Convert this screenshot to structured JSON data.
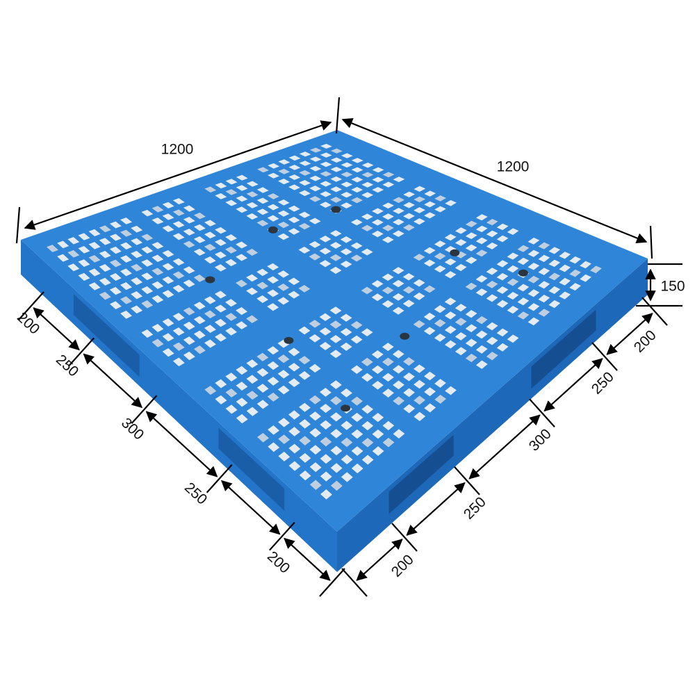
{
  "colors": {
    "pallet_top": "#2f86d8",
    "pallet_side_left": "#2275c9",
    "pallet_side_right": "#1d68b8",
    "grid_hole": "#e4ebf2",
    "dimension_line": "#000000"
  },
  "dimensions": {
    "length_label": "1200",
    "width_label": "1200",
    "height_label": "150",
    "left_side_segments": [
      "200",
      "250",
      "300",
      "250",
      "200"
    ],
    "right_side_segments": [
      "200",
      "250",
      "300",
      "250",
      "200"
    ]
  }
}
